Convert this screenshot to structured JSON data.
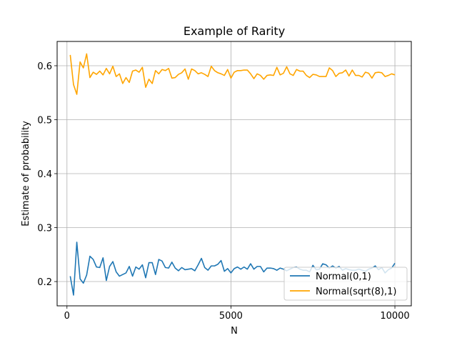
{
  "chart_data": {
    "type": "line",
    "title": "Example of Rarity",
    "xlabel": "N",
    "ylabel": "Estimate of probability",
    "xlim": [
      -300,
      10500
    ],
    "ylim": [
      0.155,
      0.645
    ],
    "xticks": [
      0,
      5000,
      10000
    ],
    "xtick_labels": [
      "0",
      "5000",
      "10000"
    ],
    "yticks": [
      0.2,
      0.3,
      0.4,
      0.5,
      0.6
    ],
    "ytick_labels": [
      "0.2",
      "0.3",
      "0.4",
      "0.5",
      "0.6"
    ],
    "grid": true,
    "legend_position": "lower-right",
    "series": [
      {
        "name": "Normal(0,1)",
        "color": "#1f77b4",
        "x": [
          100,
          200,
          300,
          400,
          500,
          600,
          700,
          800,
          900,
          1000,
          1100,
          1200,
          1300,
          1400,
          1500,
          1600,
          1700,
          1800,
          1900,
          2000,
          2100,
          2200,
          2300,
          2400,
          2500,
          2600,
          2700,
          2800,
          2900,
          3000,
          3100,
          3200,
          3300,
          3400,
          3500,
          3600,
          3700,
          3800,
          3900,
          4000,
          4100,
          4200,
          4300,
          4400,
          4500,
          4600,
          4700,
          4800,
          4900,
          5000,
          5100,
          5200,
          5300,
          5400,
          5500,
          5600,
          5700,
          5800,
          5900,
          6000,
          6100,
          6200,
          6300,
          6400,
          6500,
          6600,
          6700,
          6800,
          6900,
          7000,
          7100,
          7200,
          7300,
          7400,
          7500,
          7600,
          7700,
          7800,
          7900,
          8000,
          8100,
          8200,
          8300,
          8400,
          8500,
          8600,
          8700,
          8800,
          8900,
          9000,
          9100,
          9200,
          9300,
          9400,
          9500,
          9600,
          9700,
          9800,
          9900,
          10000
        ],
        "y": [
          0.21,
          0.175,
          0.273,
          0.205,
          0.197,
          0.212,
          0.247,
          0.241,
          0.227,
          0.226,
          0.244,
          0.202,
          0.228,
          0.237,
          0.218,
          0.21,
          0.213,
          0.216,
          0.228,
          0.21,
          0.227,
          0.223,
          0.231,
          0.207,
          0.235,
          0.235,
          0.213,
          0.241,
          0.238,
          0.226,
          0.225,
          0.236,
          0.225,
          0.22,
          0.226,
          0.222,
          0.223,
          0.224,
          0.22,
          0.231,
          0.243,
          0.226,
          0.221,
          0.229,
          0.229,
          0.232,
          0.239,
          0.219,
          0.224,
          0.216,
          0.224,
          0.227,
          0.223,
          0.227,
          0.223,
          0.233,
          0.223,
          0.228,
          0.228,
          0.218,
          0.225,
          0.225,
          0.224,
          0.221,
          0.225,
          0.223,
          0.22,
          0.223,
          0.226,
          0.227,
          0.223,
          0.221,
          0.221,
          0.218,
          0.23,
          0.222,
          0.223,
          0.233,
          0.231,
          0.225,
          0.229,
          0.225,
          0.228,
          0.221,
          0.224,
          0.222,
          0.221,
          0.221,
          0.223,
          0.221,
          0.219,
          0.223,
          0.225,
          0.229,
          0.222,
          0.226,
          0.216,
          0.222,
          0.225,
          0.234
        ]
      },
      {
        "name": "Normal(sqrt(8),1)",
        "color": "#ffa500",
        "x": [
          100,
          200,
          300,
          400,
          500,
          600,
          700,
          800,
          900,
          1000,
          1100,
          1200,
          1300,
          1400,
          1500,
          1600,
          1700,
          1800,
          1900,
          2000,
          2100,
          2200,
          2300,
          2400,
          2500,
          2600,
          2700,
          2800,
          2900,
          3000,
          3100,
          3200,
          3300,
          3400,
          3500,
          3600,
          3700,
          3800,
          3900,
          4000,
          4100,
          4200,
          4300,
          4400,
          4500,
          4600,
          4700,
          4800,
          4900,
          5000,
          5100,
          5200,
          5300,
          5400,
          5500,
          5600,
          5700,
          5800,
          5900,
          6000,
          6100,
          6200,
          6300,
          6400,
          6500,
          6600,
          6700,
          6800,
          6900,
          7000,
          7100,
          7200,
          7300,
          7400,
          7500,
          7600,
          7700,
          7800,
          7900,
          8000,
          8100,
          8200,
          8300,
          8400,
          8500,
          8600,
          8700,
          8800,
          8900,
          9000,
          9100,
          9200,
          9300,
          9400,
          9500,
          9600,
          9700,
          9800,
          9900,
          10000
        ],
        "y": [
          0.62,
          0.565,
          0.547,
          0.607,
          0.596,
          0.622,
          0.578,
          0.588,
          0.584,
          0.59,
          0.583,
          0.595,
          0.585,
          0.599,
          0.58,
          0.585,
          0.567,
          0.578,
          0.569,
          0.59,
          0.592,
          0.588,
          0.597,
          0.56,
          0.575,
          0.567,
          0.591,
          0.585,
          0.593,
          0.591,
          0.595,
          0.577,
          0.578,
          0.584,
          0.587,
          0.594,
          0.575,
          0.594,
          0.591,
          0.585,
          0.587,
          0.584,
          0.58,
          0.599,
          0.591,
          0.587,
          0.585,
          0.582,
          0.593,
          0.577,
          0.588,
          0.591,
          0.591,
          0.592,
          0.592,
          0.585,
          0.576,
          0.585,
          0.582,
          0.575,
          0.582,
          0.583,
          0.582,
          0.597,
          0.583,
          0.586,
          0.598,
          0.585,
          0.582,
          0.593,
          0.59,
          0.59,
          0.582,
          0.578,
          0.584,
          0.583,
          0.58,
          0.58,
          0.58,
          0.596,
          0.591,
          0.58,
          0.586,
          0.587,
          0.592,
          0.581,
          0.592,
          0.582,
          0.582,
          0.579,
          0.588,
          0.586,
          0.577,
          0.587,
          0.588,
          0.587,
          0.58,
          0.582,
          0.585,
          0.583
        ]
      }
    ]
  }
}
